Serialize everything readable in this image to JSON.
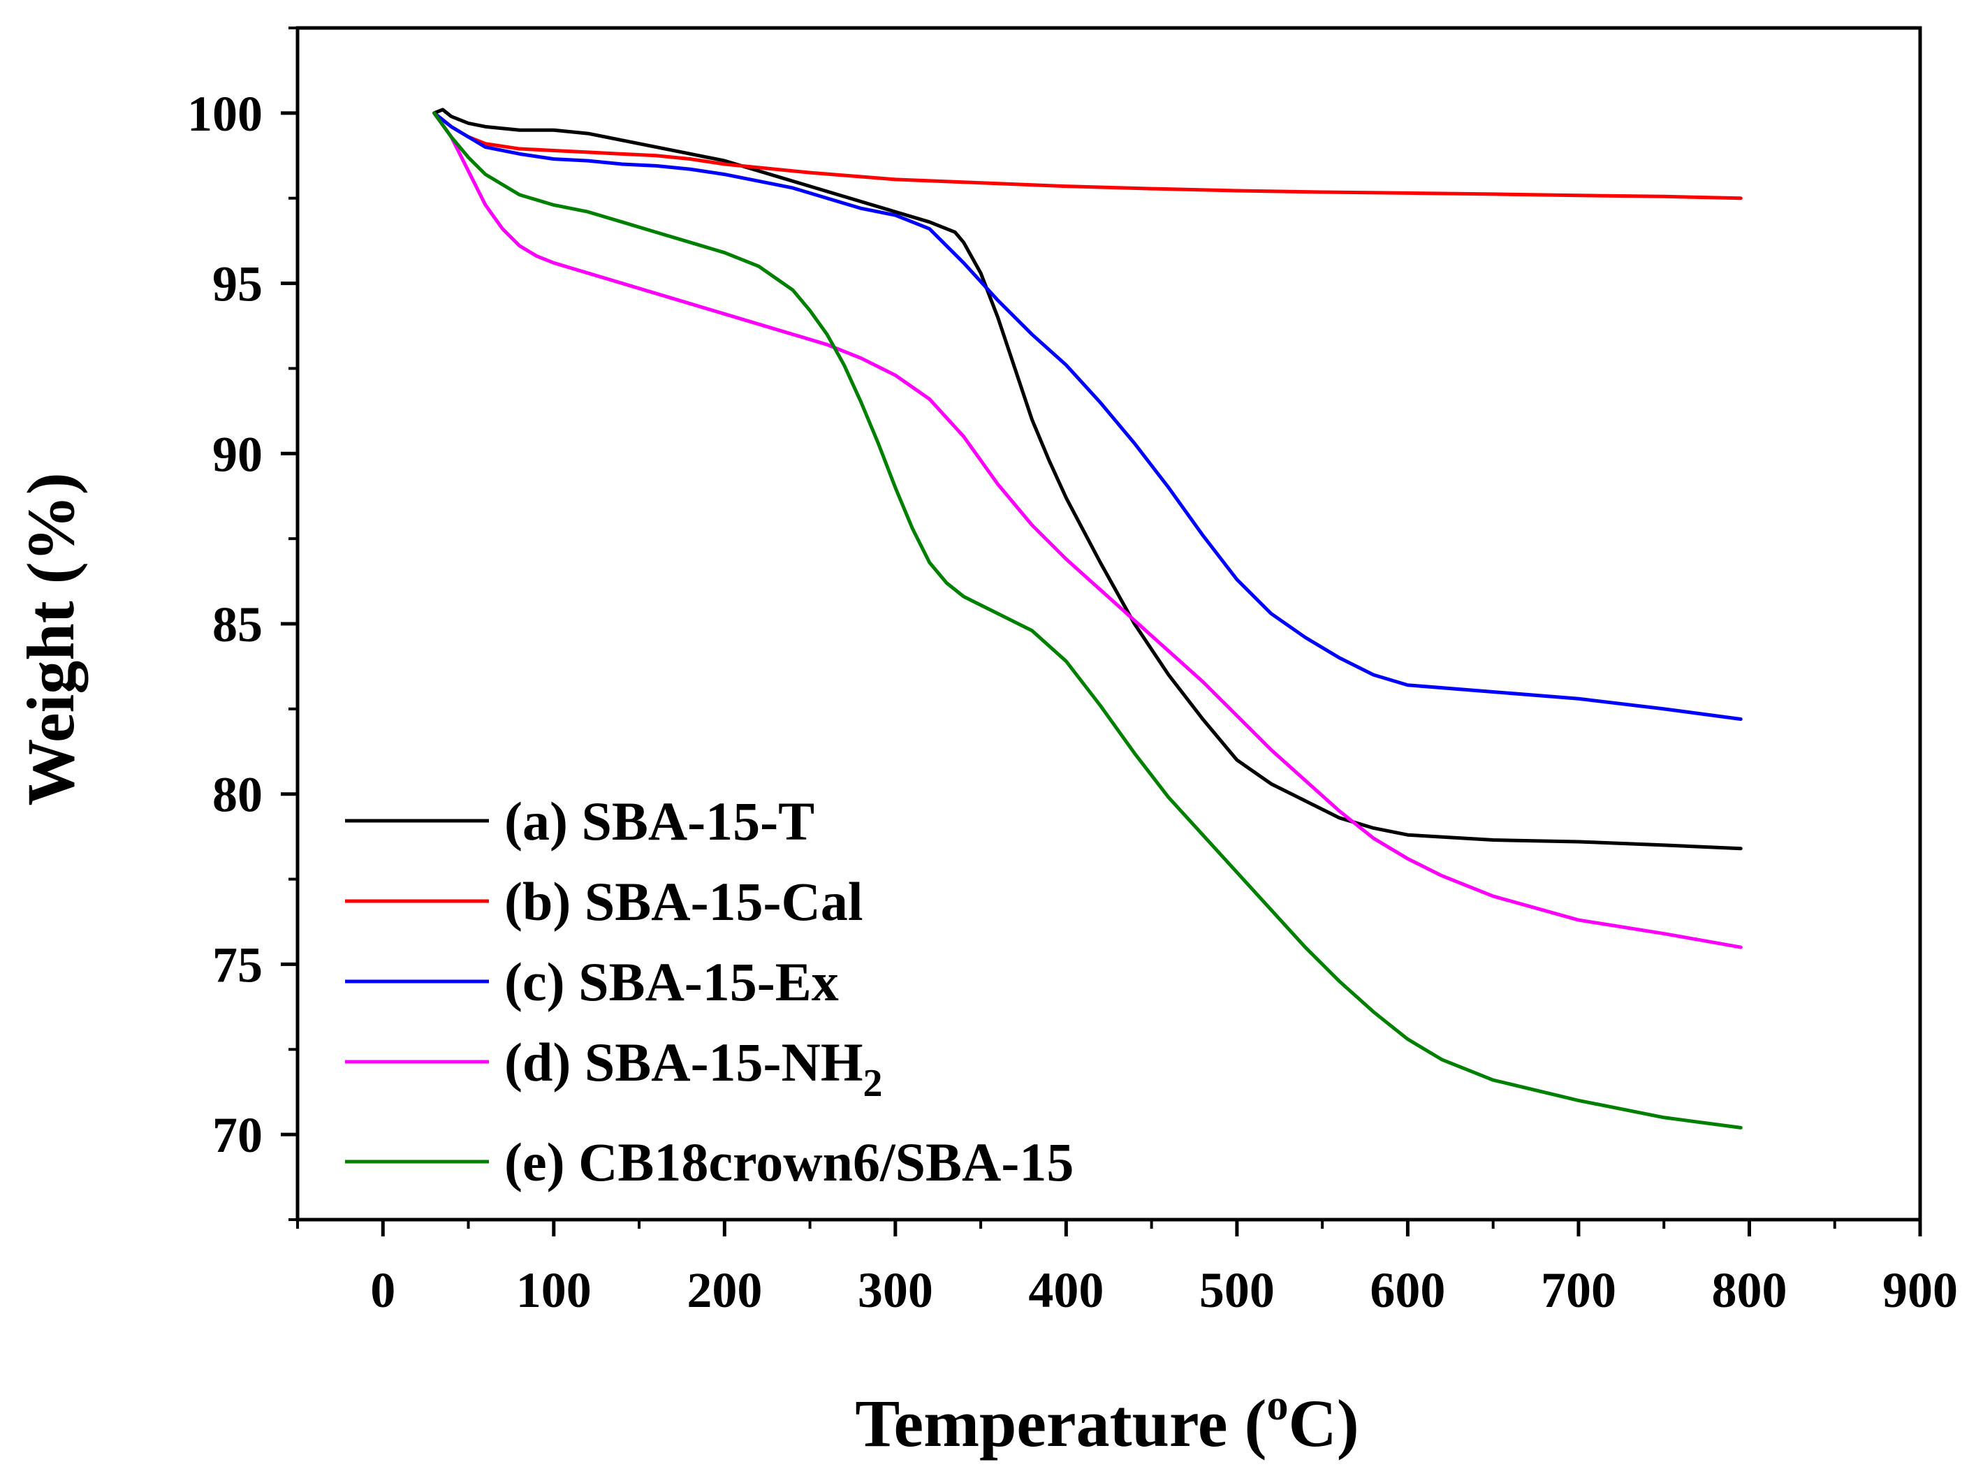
{
  "chart_data": {
    "type": "line",
    "title": "",
    "xlabel": "Temperature (",
    "xlabel_sup": "o",
    "xlabel_suffix": "C)",
    "ylabel": "Weight (%)",
    "xlim": [
      -50,
      900
    ],
    "ylim": [
      67.5,
      102.5
    ],
    "xticks": [
      0,
      100,
      200,
      300,
      400,
      500,
      600,
      700,
      800,
      900
    ],
    "xtick_labels": [
      "0",
      "100",
      "200",
      "300",
      "400",
      "500",
      "600",
      "700",
      "800",
      "900"
    ],
    "yticks": [
      70,
      75,
      80,
      85,
      90,
      95,
      100
    ],
    "ytick_labels": [
      "70",
      "75",
      "80",
      "85",
      "90",
      "95",
      "100"
    ],
    "legend_position": "bottom-left",
    "series": [
      {
        "name": "(a) SBA-15-T",
        "color": "#000000",
        "x": [
          30,
          35,
          40,
          50,
          60,
          80,
          100,
          120,
          140,
          160,
          180,
          200,
          220,
          240,
          260,
          280,
          300,
          320,
          330,
          335,
          340,
          350,
          360,
          370,
          380,
          390,
          400,
          420,
          440,
          460,
          480,
          500,
          520,
          540,
          560,
          580,
          600,
          650,
          700,
          750,
          795
        ],
        "y": [
          100.0,
          100.1,
          99.9,
          99.7,
          99.6,
          99.5,
          99.5,
          99.4,
          99.2,
          99.0,
          98.8,
          98.6,
          98.3,
          98.0,
          97.7,
          97.4,
          97.1,
          96.8,
          96.6,
          96.5,
          96.2,
          95.3,
          94.0,
          92.5,
          91.0,
          89.8,
          88.7,
          86.8,
          85.0,
          83.5,
          82.2,
          81.0,
          80.3,
          79.8,
          79.3,
          79.0,
          78.8,
          78.65,
          78.6,
          78.5,
          78.4
        ]
      },
      {
        "name": "(b) SBA-15-Cal",
        "color": "#ff0000",
        "x": [
          30,
          40,
          50,
          60,
          80,
          100,
          120,
          140,
          160,
          180,
          200,
          250,
          300,
          350,
          400,
          450,
          500,
          550,
          600,
          650,
          700,
          750,
          795
        ],
        "y": [
          100.0,
          99.6,
          99.3,
          99.1,
          98.95,
          98.9,
          98.85,
          98.8,
          98.75,
          98.65,
          98.5,
          98.25,
          98.05,
          97.95,
          97.85,
          97.78,
          97.72,
          97.68,
          97.65,
          97.62,
          97.58,
          97.55,
          97.5
        ]
      },
      {
        "name": "(c) SBA-15-Ex",
        "color": "#0000ff",
        "x": [
          30,
          40,
          50,
          60,
          80,
          100,
          120,
          140,
          160,
          180,
          200,
          220,
          240,
          260,
          280,
          300,
          320,
          340,
          360,
          380,
          400,
          420,
          440,
          460,
          480,
          500,
          520,
          540,
          560,
          580,
          600,
          650,
          700,
          750,
          795
        ],
        "y": [
          100.0,
          99.6,
          99.3,
          99.0,
          98.8,
          98.65,
          98.6,
          98.5,
          98.45,
          98.35,
          98.2,
          98.0,
          97.8,
          97.5,
          97.2,
          97.0,
          96.6,
          95.6,
          94.5,
          93.5,
          92.6,
          91.5,
          90.3,
          89.0,
          87.6,
          86.3,
          85.3,
          84.6,
          84.0,
          83.5,
          83.2,
          83.0,
          82.8,
          82.5,
          82.2
        ]
      },
      {
        "name": "(d) SBA-15-NH",
        "name_sub": "2",
        "color": "#ff00ff",
        "x": [
          30,
          40,
          50,
          60,
          70,
          80,
          90,
          100,
          120,
          140,
          160,
          180,
          200,
          220,
          240,
          260,
          280,
          300,
          320,
          340,
          360,
          380,
          400,
          420,
          440,
          460,
          480,
          500,
          520,
          540,
          560,
          580,
          600,
          620,
          650,
          700,
          750,
          795
        ],
        "y": [
          100.0,
          99.3,
          98.3,
          97.3,
          96.6,
          96.1,
          95.8,
          95.6,
          95.3,
          95.0,
          94.7,
          94.4,
          94.1,
          93.8,
          93.5,
          93.2,
          92.8,
          92.3,
          91.6,
          90.5,
          89.1,
          87.9,
          86.9,
          86.0,
          85.1,
          84.2,
          83.3,
          82.3,
          81.3,
          80.4,
          79.5,
          78.7,
          78.1,
          77.6,
          77.0,
          76.3,
          75.9,
          75.5
        ]
      },
      {
        "name": "(e) CB18crown6/SBA-15",
        "color": "#008000",
        "x": [
          30,
          40,
          50,
          60,
          70,
          80,
          100,
          120,
          140,
          160,
          180,
          200,
          220,
          240,
          250,
          260,
          270,
          280,
          290,
          300,
          310,
          320,
          330,
          340,
          360,
          380,
          400,
          420,
          440,
          460,
          480,
          500,
          520,
          540,
          560,
          580,
          600,
          620,
          650,
          700,
          750,
          795
        ],
        "y": [
          100.0,
          99.3,
          98.7,
          98.2,
          97.9,
          97.6,
          97.3,
          97.1,
          96.8,
          96.5,
          96.2,
          95.9,
          95.5,
          94.8,
          94.2,
          93.5,
          92.6,
          91.5,
          90.3,
          89.0,
          87.8,
          86.8,
          86.2,
          85.8,
          85.3,
          84.8,
          83.9,
          82.6,
          81.2,
          79.9,
          78.8,
          77.7,
          76.6,
          75.5,
          74.5,
          73.6,
          72.8,
          72.2,
          71.6,
          71.0,
          70.5,
          70.2
        ]
      }
    ]
  }
}
